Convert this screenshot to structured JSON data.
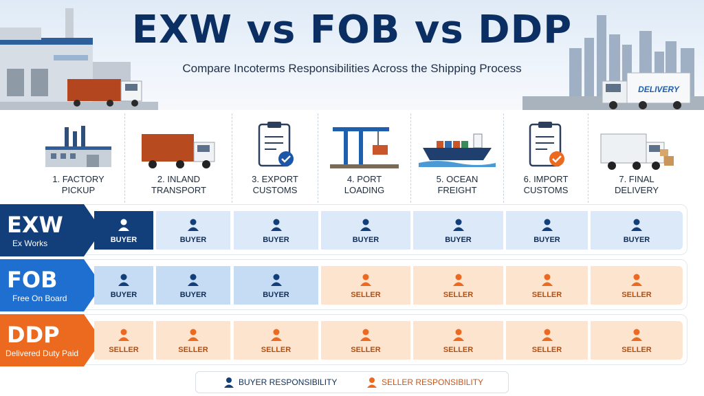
{
  "title": "EXW vs FOB vs DDP",
  "subtitle": "Compare Incoterms Responsibilities Across the Shipping Process",
  "hero": {
    "truck_sign": "DELIVERY"
  },
  "stages": [
    {
      "label": "1. FACTORY\nPICKUP",
      "icon": "factory-icon"
    },
    {
      "label": "2. INLAND\nTRANSPORT",
      "icon": "truck-icon"
    },
    {
      "label": "3. EXPORT\nCUSTOMS",
      "icon": "clipboard-check-icon"
    },
    {
      "label": "4. PORT\nLOADING",
      "icon": "crane-icon"
    },
    {
      "label": "5. OCEAN\nFREIGHT",
      "icon": "ship-icon"
    },
    {
      "label": "6. IMPORT\nCUSTOMS",
      "icon": "clipboard-check-icon"
    },
    {
      "label": "7. FINAL\nDELIVERY",
      "icon": "delivery-truck-icon"
    }
  ],
  "terms": [
    {
      "code": "EXW",
      "name": "Ex Works",
      "color": "#123e7a",
      "cells": [
        "BUYER",
        "BUYER",
        "BUYER",
        "BUYER",
        "BUYER",
        "BUYER",
        "BUYER"
      ]
    },
    {
      "code": "FOB",
      "name": "Free On Board",
      "color": "#1f6fd1",
      "cells": [
        "BUYER",
        "BUYER",
        "BUYER",
        "SELLER",
        "SELLER",
        "SELLER",
        "SELLER"
      ]
    },
    {
      "code": "DDP",
      "name": "Delivered Duty Paid",
      "color": "#ec6a1f",
      "cells": [
        "SELLER",
        "SELLER",
        "SELLER",
        "SELLER",
        "SELLER",
        "SELLER",
        "SELLER"
      ]
    }
  ],
  "legend": {
    "buyer": "BUYER RESPONSIBILITY",
    "seller": "SELLER RESPONSIBILITY",
    "buyer_color": "#123e7a",
    "seller_color": "#ec6a1f"
  }
}
